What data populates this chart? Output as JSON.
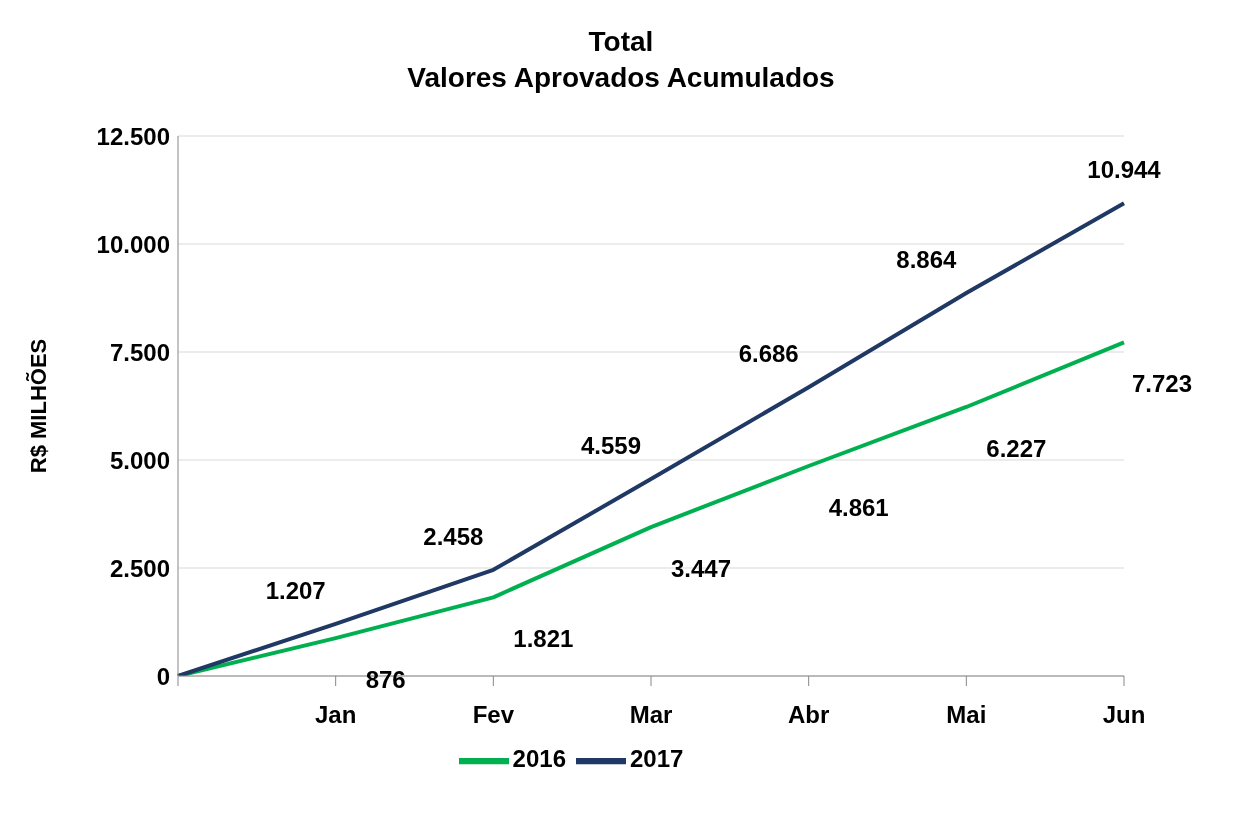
{
  "chart_data": {
    "type": "line",
    "title": "Total",
    "subtitle": "Valores Aprovados Acumulados",
    "ylabel": "R$ MILHÕES",
    "categories": [
      null,
      "Jan",
      "Fev",
      "Mar",
      "Abr",
      "Mai",
      "Jun"
    ],
    "series": [
      {
        "name": "2016",
        "color": "#00b050",
        "values": [
          0,
          876,
          1821,
          3447,
          4861,
          6227,
          7723
        ],
        "value_labels": [
          null,
          "876",
          "1.821",
          "3.447",
          "4.861",
          "6.227",
          "7.723"
        ]
      },
      {
        "name": "2017",
        "color": "#1f3864",
        "values": [
          0,
          1207,
          2458,
          4559,
          6686,
          8864,
          10944
        ],
        "value_labels": [
          null,
          "1.207",
          "2.458",
          "4.559",
          "6.686",
          "8.864",
          "10.944"
        ]
      }
    ],
    "ylim": [
      0,
      12500
    ],
    "yticks": [
      0,
      {
        "value": 2500,
        "label": "2.500"
      },
      {
        "value": 5000,
        "label": "5.000"
      },
      {
        "value": 7500,
        "label": "7.500"
      },
      {
        "value": 10000,
        "label": "10.000"
      },
      {
        "value": 12500,
        "label": "12.500"
      }
    ],
    "grid": "y",
    "legend": "bottom",
    "marker": "none",
    "line_style": "solid"
  }
}
